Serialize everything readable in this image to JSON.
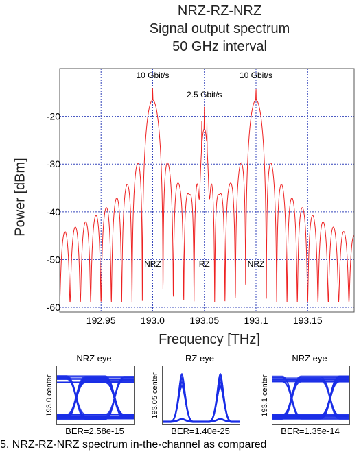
{
  "chart_data": {
    "type": "line",
    "title_lines": [
      "NRZ-RZ-NRZ",
      "Signal output spectrum",
      "50 GHz interval"
    ],
    "xlabel": "Frequency [THz]",
    "ylabel": "Power [dBm]",
    "xlim": [
      192.91,
      193.195
    ],
    "ylim": [
      -61,
      -10
    ],
    "x_ticks": [
      192.95,
      193.0,
      193.05,
      193.1,
      193.15
    ],
    "x_tick_labels": [
      "192.95",
      "193.0",
      "193.05",
      "193.1",
      "193.15"
    ],
    "y_ticks": [
      -20,
      -30,
      -40,
      -50,
      -60
    ],
    "y_tick_labels": [
      "-20",
      "-30",
      "-40",
      "-50",
      "-60"
    ],
    "grid": true,
    "line_color": "#ee2222",
    "grid_color": "#3344bb",
    "carriers": [
      {
        "x": 193.0,
        "peak_dbm": -14,
        "format": "NRZ",
        "rate_label": "10 Gbit/s"
      },
      {
        "x": 193.05,
        "peak_dbm": -18,
        "format": "RZ",
        "rate_label": "2.5 Gbit/s"
      },
      {
        "x": 193.1,
        "peak_dbm": -14,
        "format": "NRZ",
        "rate_label": "10 Gbit/s"
      }
    ],
    "annotations": [
      {
        "text": "10 Gbit/s",
        "x": 193.0,
        "y": -12
      },
      {
        "text": "2.5 Gbit/s",
        "x": 193.05,
        "y": -16
      },
      {
        "text": "10 Gbit/s",
        "x": 193.1,
        "y": -12
      },
      {
        "text": "NRZ",
        "x": 193.0,
        "y": -51.5
      },
      {
        "text": "RZ",
        "x": 193.05,
        "y": -51.5
      },
      {
        "text": "NRZ",
        "x": 193.1,
        "y": -51.5
      }
    ],
    "noise_floor_dbm": -59
  },
  "eyes": [
    {
      "title": "NRZ eye",
      "ylabel": "193.0 center",
      "ber": "BER=2.58e-15",
      "kind": "nrz"
    },
    {
      "title": "RZ eye",
      "ylabel": "193.05 center",
      "ber": "BER=1.40e-25",
      "kind": "rz"
    },
    {
      "title": "NRZ eye",
      "ylabel": "193.1 center",
      "ber": "BER=1.35e-14",
      "kind": "nrz"
    }
  ],
  "eye_color": "#1a2ee6",
  "caption": "5. NRZ-RZ-NRZ spectrum in-the-channel as compared"
}
